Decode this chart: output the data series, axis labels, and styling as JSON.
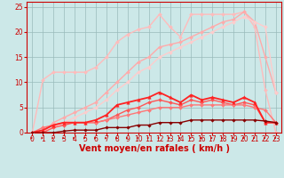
{
  "bg_color": "#cce8e8",
  "grid_color": "#99bbbb",
  "xlabel": "Vent moyen/en rafales ( km/h )",
  "xlabel_color": "#cc0000",
  "xlabel_fontsize": 7,
  "xlim": [
    -0.5,
    23.5
  ],
  "ylim": [
    0,
    26
  ],
  "yticks": [
    0,
    5,
    10,
    15,
    20,
    25
  ],
  "xticks": [
    0,
    1,
    2,
    3,
    4,
    5,
    6,
    7,
    8,
    9,
    10,
    11,
    12,
    13,
    14,
    15,
    16,
    17,
    18,
    19,
    20,
    21,
    22,
    23
  ],
  "lines": [
    {
      "x": [
        0,
        1,
        2,
        3,
        4,
        5,
        6,
        7,
        8,
        9,
        10,
        11,
        12,
        13,
        14,
        15,
        16,
        17,
        18,
        19,
        20,
        21,
        22,
        23
      ],
      "y": [
        0,
        10.5,
        12,
        12,
        12,
        12,
        13,
        15,
        18,
        19.5,
        20.5,
        21,
        23.5,
        21,
        19,
        23.5,
        23.5,
        23.5,
        23.5,
        23.5,
        24,
        21,
        8.5,
        0
      ],
      "color": "#ffbbbb",
      "lw": 1.0,
      "marker": "D",
      "ms": 2.0,
      "zorder": 2
    },
    {
      "x": [
        0,
        1,
        2,
        3,
        4,
        5,
        6,
        7,
        8,
        9,
        10,
        11,
        12,
        13,
        14,
        15,
        16,
        17,
        18,
        19,
        20,
        21,
        22,
        23
      ],
      "y": [
        0,
        0,
        2,
        3,
        4,
        5,
        6,
        8,
        10,
        12,
        14,
        15,
        17,
        17.5,
        18,
        19,
        20,
        21,
        22,
        22.5,
        24,
        22,
        15,
        8
      ],
      "color": "#ffaaaa",
      "lw": 1.0,
      "marker": "D",
      "ms": 2.0,
      "zorder": 2
    },
    {
      "x": [
        0,
        1,
        2,
        3,
        4,
        5,
        6,
        7,
        8,
        9,
        10,
        11,
        12,
        13,
        14,
        15,
        16,
        17,
        18,
        19,
        20,
        21,
        22,
        23
      ],
      "y": [
        0,
        0,
        1,
        2,
        3,
        4,
        5,
        6.5,
        8.5,
        10,
        12,
        13,
        15,
        16,
        17,
        18,
        19,
        20,
        21,
        22,
        23,
        22,
        21,
        8
      ],
      "color": "#ffcccc",
      "lw": 1.0,
      "marker": "D",
      "ms": 2.0,
      "zorder": 2
    },
    {
      "x": [
        0,
        1,
        2,
        3,
        4,
        5,
        6,
        7,
        8,
        9,
        10,
        11,
        12,
        13,
        14,
        15,
        16,
        17,
        18,
        19,
        20,
        21,
        22,
        23
      ],
      "y": [
        0,
        0.5,
        1.5,
        2,
        2,
        2,
        2.5,
        3.5,
        5.5,
        6,
        6.5,
        7,
        8,
        7,
        6,
        7.5,
        6.5,
        7,
        6.5,
        6,
        7,
        6,
        2,
        2
      ],
      "color": "#ff2222",
      "lw": 1.3,
      "marker": "^",
      "ms": 2.5,
      "zorder": 4
    },
    {
      "x": [
        0,
        1,
        2,
        3,
        4,
        5,
        6,
        7,
        8,
        9,
        10,
        11,
        12,
        13,
        14,
        15,
        16,
        17,
        18,
        19,
        20,
        21,
        22,
        23
      ],
      "y": [
        0,
        0,
        1,
        1.5,
        2,
        2,
        2,
        2.5,
        3.5,
        4.5,
        5,
        6,
        6.5,
        6,
        5.5,
        6.5,
        6,
        6.5,
        6,
        5.5,
        6,
        5.5,
        2,
        2
      ],
      "color": "#ff5555",
      "lw": 1.0,
      "marker": "D",
      "ms": 2.0,
      "zorder": 3
    },
    {
      "x": [
        0,
        1,
        2,
        3,
        4,
        5,
        6,
        7,
        8,
        9,
        10,
        11,
        12,
        13,
        14,
        15,
        16,
        17,
        18,
        19,
        20,
        21,
        22,
        23
      ],
      "y": [
        0,
        1,
        1.5,
        2,
        2,
        2,
        2,
        2.5,
        3,
        3.5,
        4,
        4.5,
        5,
        5,
        5,
        5.5,
        5.5,
        5.5,
        5.5,
        5.5,
        5.5,
        5,
        4.5,
        2
      ],
      "color": "#ff7777",
      "lw": 1.0,
      "marker": "D",
      "ms": 2.0,
      "zorder": 3
    },
    {
      "x": [
        0,
        1,
        2,
        3,
        4,
        5,
        6,
        7,
        8,
        9,
        10,
        11,
        12,
        13,
        14,
        15,
        16,
        17,
        18,
        19,
        20,
        21,
        22,
        23
      ],
      "y": [
        0,
        0,
        0,
        0.3,
        0.5,
        0.5,
        0.5,
        1,
        1,
        1,
        1.5,
        1.5,
        2,
        2,
        2,
        2.5,
        2.5,
        2.5,
        2.5,
        2.5,
        2.5,
        2.5,
        2.3,
        2
      ],
      "color": "#880000",
      "lw": 1.0,
      "marker": "D",
      "ms": 1.8,
      "zorder": 5
    }
  ],
  "arrow_color": "#cc0000",
  "tick_fontsize": 5.5,
  "tick_color": "#cc0000",
  "spine_color": "#cc0000",
  "subplots_adjust": [
    0.095,
    0.255,
    0.99,
    0.99
  ]
}
